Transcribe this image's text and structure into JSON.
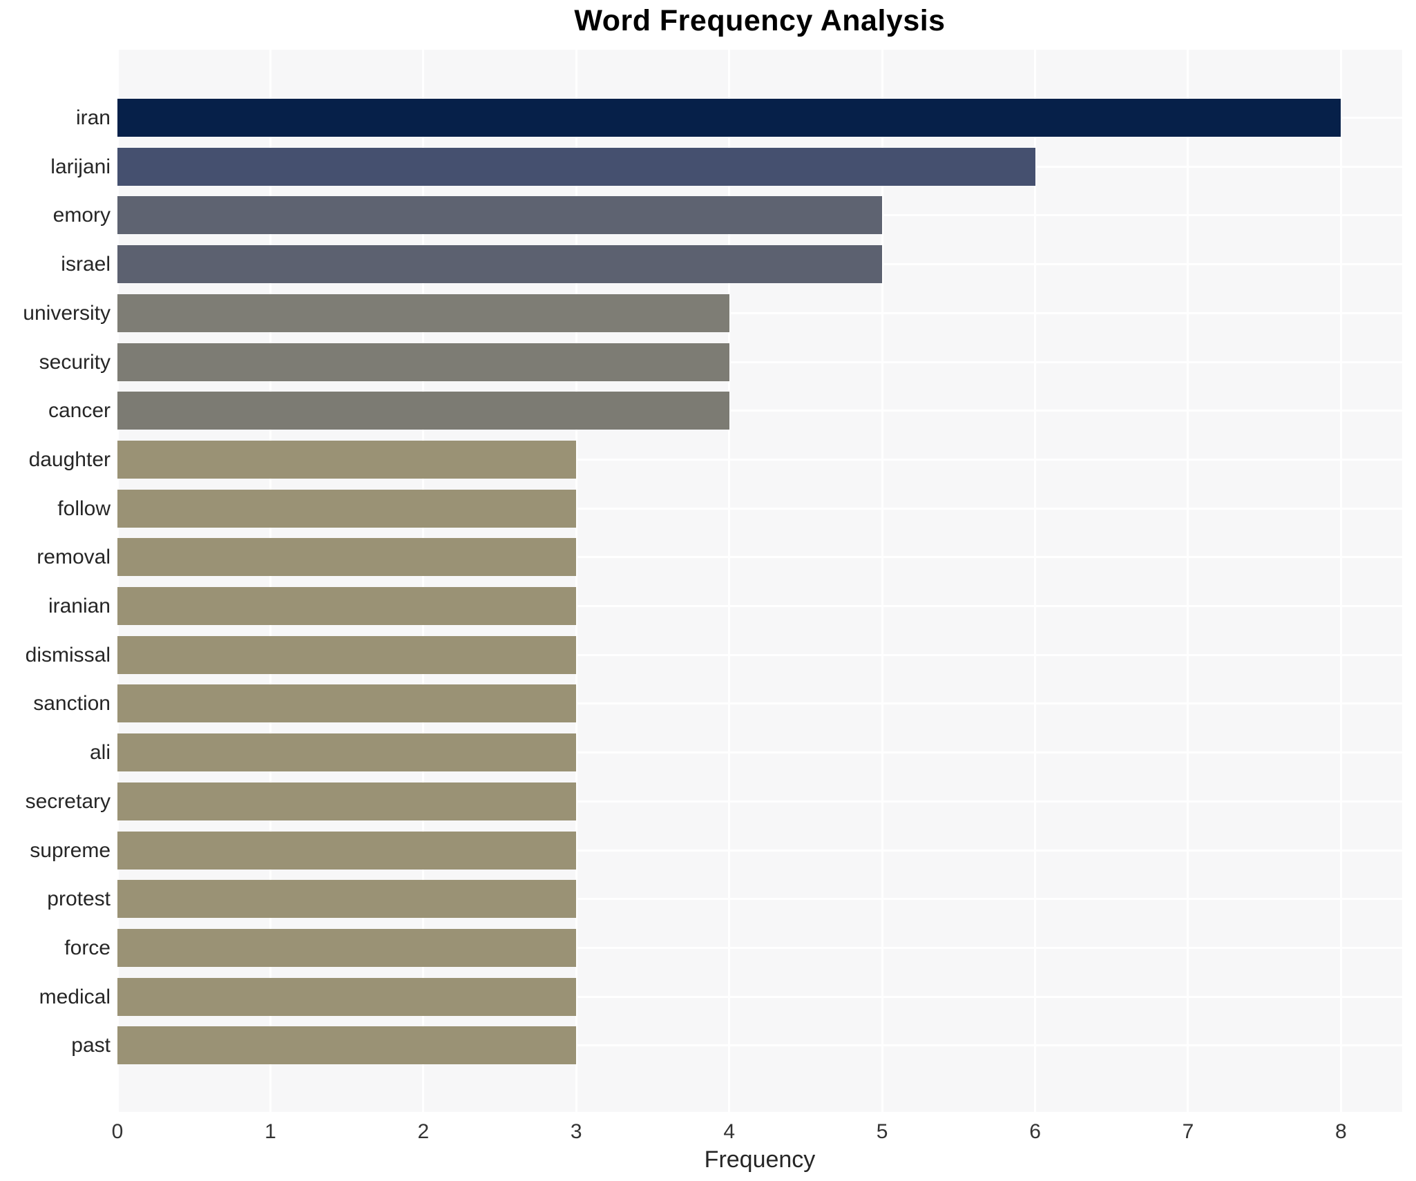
{
  "title": "Word Frequency Analysis",
  "chart_data": {
    "type": "bar",
    "orientation": "horizontal",
    "title": "Word Frequency Analysis",
    "xlabel": "Frequency",
    "ylabel": "",
    "xlim": [
      0,
      8.4
    ],
    "x_ticks": [
      0,
      1,
      2,
      3,
      4,
      5,
      6,
      7,
      8
    ],
    "grid": true,
    "legend": "none",
    "plot_background": "#f7f7f8",
    "gridline_color": "#ffffff",
    "categories": [
      "iran",
      "larijani",
      "emory",
      "israel",
      "university",
      "security",
      "cancer",
      "daughter",
      "follow",
      "removal",
      "iranian",
      "dismissal",
      "sanction",
      "ali",
      "secretary",
      "supreme",
      "protest",
      "force",
      "medical",
      "past"
    ],
    "values": [
      8,
      6,
      5,
      5,
      4,
      4,
      4,
      3,
      3,
      3,
      3,
      3,
      3,
      3,
      3,
      3,
      3,
      3,
      3,
      3
    ],
    "bar_colors": [
      "#062049",
      "#45506f",
      "#5e6371",
      "#5c6170",
      "#7e7d75",
      "#7d7c74",
      "#7c7b73",
      "#9a9275",
      "#9a9275",
      "#9a9275",
      "#9a9275",
      "#9a9275",
      "#9a9275",
      "#9a9275",
      "#9a9275",
      "#9a9275",
      "#9a9275",
      "#9a9275",
      "#9a9275",
      "#9a9275"
    ]
  }
}
